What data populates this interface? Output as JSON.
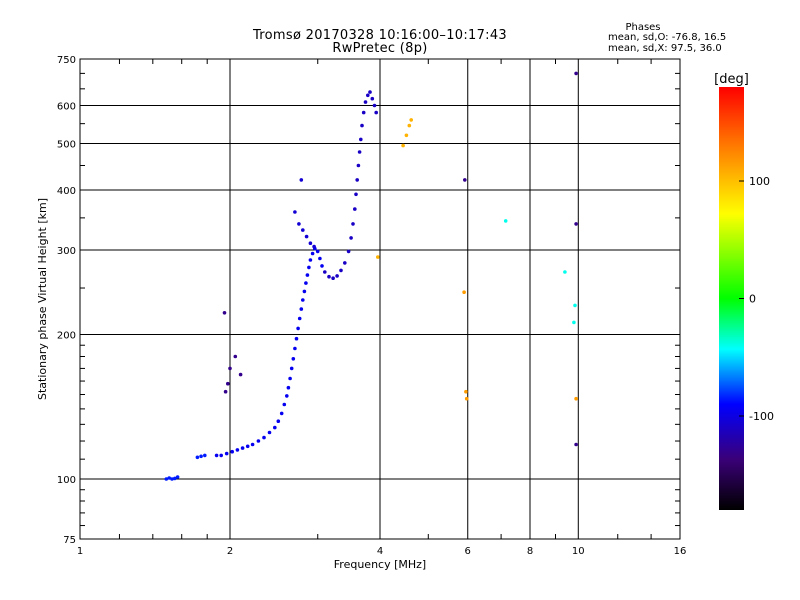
{
  "header": {
    "title_line1": "Tromsø 20170328 10:16:00–10:17:43",
    "title_line2": "RwPretec (8p)",
    "phase_title": "Phases",
    "phase_stats_o": "mean, sd,O: -76.8, 16.5",
    "phase_stats_x": "mean, sd,X:  97.5, 36.0"
  },
  "chart_data": {
    "type": "scatter",
    "xlabel": "Frequency [MHz]",
    "ylabel": "Stationary phase Virtual Height [km]",
    "xscale": "log",
    "yscale": "log",
    "xlim": [
      1,
      16
    ],
    "ylim": [
      75,
      750
    ],
    "xticks": [
      1,
      2,
      4,
      6,
      8,
      10,
      16
    ],
    "xtick_labels": [
      "1",
      "2",
      "4",
      "6",
      "8",
      "10",
      "16"
    ],
    "yticks": [
      75,
      100,
      200,
      300,
      400,
      500,
      600,
      750
    ],
    "ytick_labels": [
      "75",
      "100",
      "200",
      "300",
      "400",
      "500",
      "600",
      "750"
    ],
    "grid": true,
    "colorbar": {
      "label": "[deg]",
      "range": [
        -180,
        180
      ],
      "ticks": [
        100,
        0,
        -100
      ],
      "tick_labels": [
        "100",
        "0",
        "-100"
      ]
    },
    "traces": [
      {
        "name": "",
        "points": [
          [
            1.49,
            100
          ],
          [
            1.51,
            100.5
          ],
          [
            1.53,
            100
          ],
          [
            1.55,
            100.3
          ],
          [
            1.57,
            101
          ],
          [
            1.72,
            111
          ],
          [
            1.75,
            111.5
          ],
          [
            1.78,
            112
          ]
        ],
        "phase": -85
      },
      {
        "name": "",
        "points": [
          [
            1.88,
            112
          ],
          [
            1.92,
            112
          ],
          [
            1.97,
            113
          ],
          [
            2.02,
            114
          ],
          [
            2.07,
            115
          ],
          [
            2.12,
            116
          ],
          [
            2.17,
            117
          ],
          [
            2.22,
            118
          ],
          [
            2.28,
            120
          ],
          [
            2.34,
            122
          ],
          [
            2.4,
            125
          ],
          [
            2.46,
            128
          ],
          [
            2.5,
            132
          ],
          [
            2.54,
            137
          ],
          [
            2.57,
            143
          ],
          [
            2.6,
            149
          ],
          [
            2.62,
            155
          ],
          [
            2.64,
            162
          ],
          [
            2.66,
            170
          ],
          [
            2.68,
            178
          ],
          [
            2.7,
            187
          ],
          [
            2.72,
            196
          ],
          [
            2.74,
            206
          ],
          [
            2.76,
            216
          ],
          [
            2.78,
            226
          ],
          [
            2.8,
            236
          ],
          [
            2.82,
            246
          ],
          [
            2.84,
            256
          ],
          [
            2.86,
            266
          ],
          [
            2.88,
            276
          ],
          [
            2.9,
            286
          ],
          [
            2.93,
            295
          ],
          [
            2.96,
            302
          ],
          [
            3.0,
            298
          ],
          [
            3.03,
            288
          ],
          [
            3.06,
            278
          ]
        ],
        "phase": -95
      },
      {
        "name": "",
        "points": [
          [
            3.1,
            270
          ],
          [
            3.16,
            264
          ],
          [
            3.22,
            262
          ],
          [
            3.28,
            265
          ],
          [
            3.34,
            272
          ],
          [
            3.4,
            282
          ],
          [
            3.46,
            298
          ],
          [
            3.5,
            318
          ],
          [
            3.53,
            340
          ],
          [
            3.56,
            365
          ],
          [
            3.58,
            392
          ],
          [
            3.6,
            420
          ],
          [
            3.62,
            450
          ],
          [
            3.64,
            480
          ],
          [
            3.66,
            510
          ],
          [
            3.68,
            545
          ],
          [
            3.71,
            580
          ],
          [
            3.74,
            610
          ],
          [
            3.78,
            630
          ],
          [
            3.82,
            640
          ],
          [
            3.86,
            620
          ],
          [
            3.9,
            600
          ],
          [
            3.93,
            580
          ]
        ],
        "phase": -110
      },
      {
        "name": "",
        "points": [
          [
            2.75,
            340
          ],
          [
            2.8,
            330
          ],
          [
            2.85,
            320
          ],
          [
            2.9,
            310
          ],
          [
            2.95,
            305
          ],
          [
            2.7,
            360
          ],
          [
            2.78,
            420
          ]
        ],
        "phase": -105
      },
      {
        "name": "",
        "points": [
          [
            4.45,
            495
          ],
          [
            4.52,
            520
          ],
          [
            4.58,
            545
          ],
          [
            4.62,
            560
          ],
          [
            3.96,
            290
          ]
        ],
        "phase": 105
      },
      {
        "name": "",
        "points": [
          [
            5.9,
            245
          ],
          [
            5.95,
            152
          ],
          [
            5.97,
            147
          ],
          [
            9.9,
            147
          ]
        ],
        "phase": 115
      },
      {
        "name": "",
        "points": [
          [
            7.15,
            345
          ],
          [
            9.4,
            270
          ],
          [
            9.8,
            212
          ],
          [
            9.85,
            230
          ]
        ],
        "phase": -40
      },
      {
        "name": "",
        "points": [
          [
            5.92,
            420
          ],
          [
            9.9,
            700
          ],
          [
            9.9,
            340
          ],
          [
            9.9,
            118
          ],
          [
            1.95,
            222
          ],
          [
            2.05,
            180
          ],
          [
            2.1,
            165
          ],
          [
            1.96,
            152
          ],
          [
            1.98,
            158
          ],
          [
            2.0,
            170
          ]
        ],
        "phase": -130
      }
    ]
  },
  "colors": {
    "background": "#ffffff",
    "grid": "#000000"
  }
}
